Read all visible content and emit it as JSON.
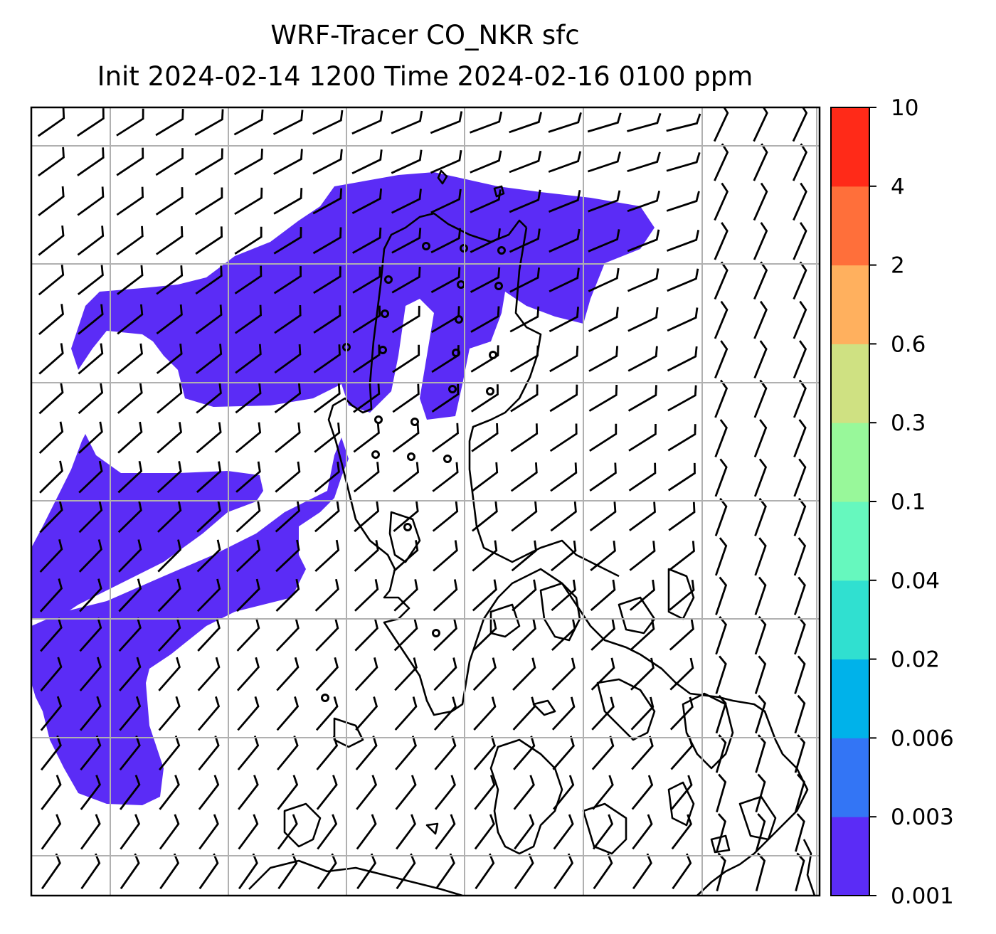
{
  "title": "WRF-Tracer CO_NKR sfc",
  "subtitle": "Init 2024-02-14 1200 Time 2024-02-16 0100 ppm",
  "colorbar": {
    "levels": [
      "0.001",
      "0.003",
      "0.006",
      "0.02",
      "0.04",
      "0.1",
      "0.3",
      "0.6",
      "2",
      "4",
      "10"
    ],
    "colors": [
      "#5b2cf6",
      "#3375f5",
      "#00b2ea",
      "#30e0d0",
      "#66f8be",
      "#98f89a",
      "#cfe182",
      "#ffb05e",
      "#ff6f3a",
      "#ff2a18"
    ]
  },
  "map": {
    "tracer_color": "#5b2cf6",
    "coastline_color": "#000000",
    "grid_color": "#b0b0b0",
    "wind_barb_color": "#000000"
  }
}
